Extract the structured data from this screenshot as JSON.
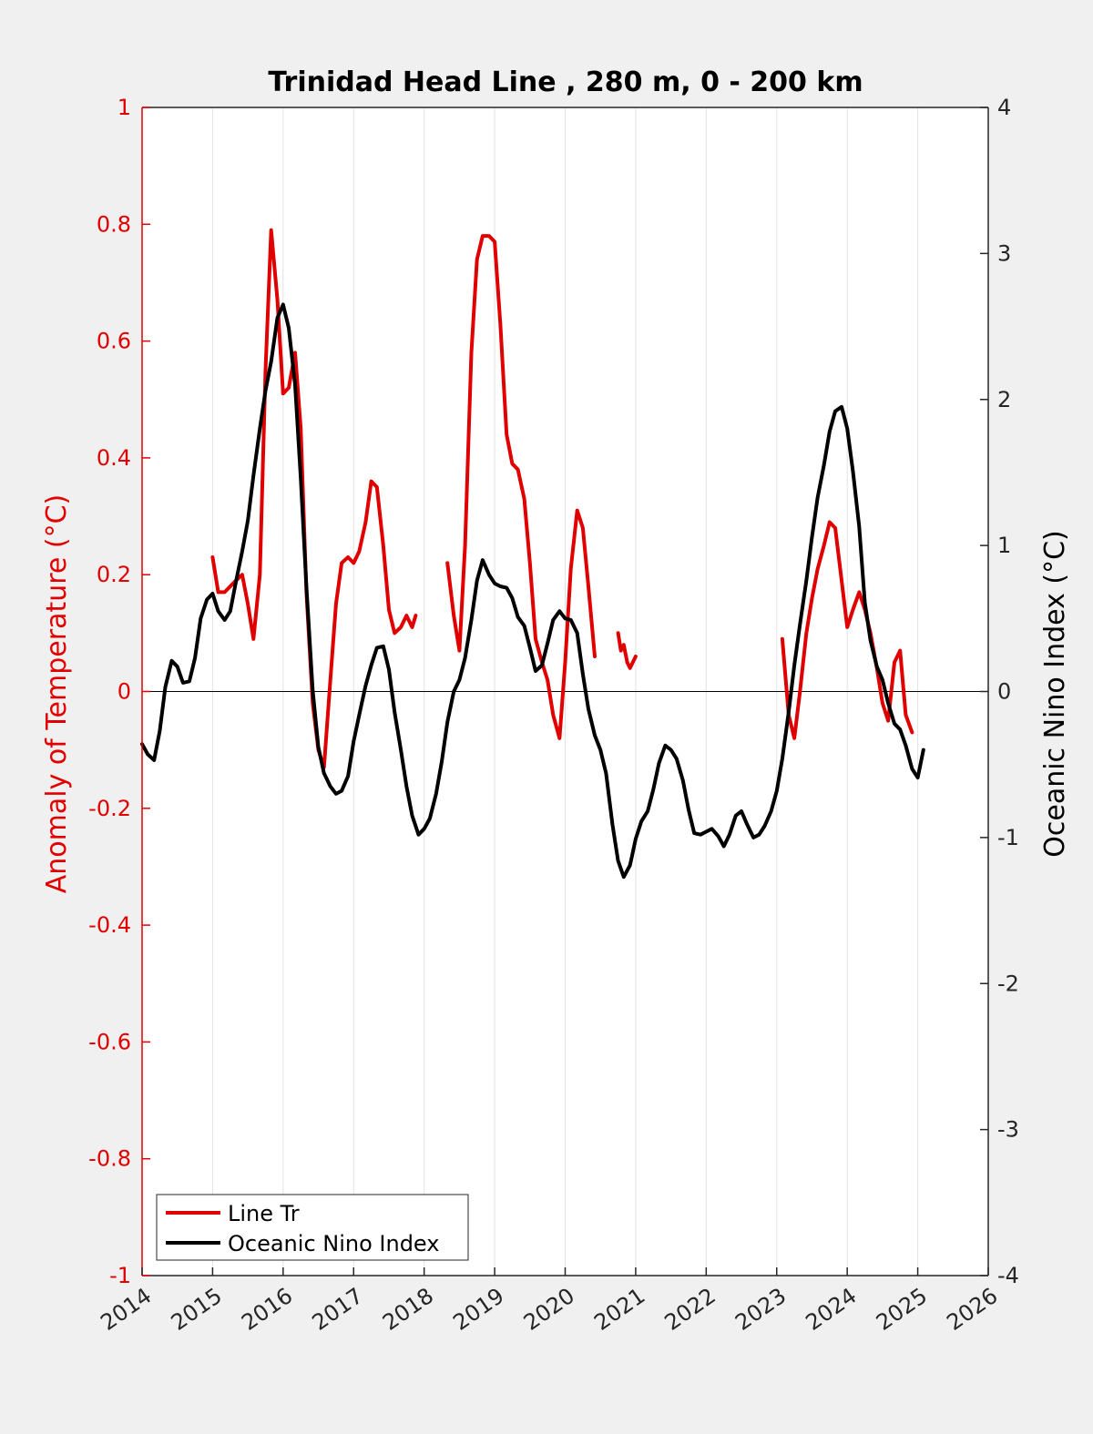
{
  "chart_data": {
    "type": "line",
    "title": "Trinidad Head Line , 280 m, 0 - 200 km",
    "xlabel": "",
    "xlim": [
      2014,
      2026
    ],
    "x_ticks": [
      "2014",
      "2015",
      "2016",
      "2017",
      "2018",
      "2019",
      "2020",
      "2021",
      "2022",
      "2023",
      "2024",
      "2025",
      "2026"
    ],
    "ylabel_left": "Anomaly of Temperature (°C)",
    "ylim_left": [
      -1,
      1
    ],
    "y_ticks_left": [
      "1",
      "0.8",
      "0.6",
      "0.4",
      "0.2",
      "0",
      "-0.2",
      "-0.4",
      "-0.6",
      "-0.8",
      "-1"
    ],
    "ylabel_right": "Oceanic Nino Index (°C)",
    "ylim_right": [
      -4,
      4
    ],
    "y_ticks_right": [
      "4",
      "3",
      "2",
      "1",
      "0",
      "-1",
      "-2",
      "-3",
      "-4"
    ],
    "grid": "x-vertical",
    "legend_position": "bottom-left",
    "series": [
      {
        "name": "Line Tr",
        "color": "#e00000",
        "axis": "left",
        "segments": [
          [
            [
              2015.0,
              0.23
            ],
            [
              2015.08,
              0.17
            ],
            [
              2015.17,
              0.17
            ],
            [
              2015.25,
              0.18
            ],
            [
              2015.33,
              0.19
            ],
            [
              2015.42,
              0.2
            ],
            [
              2015.5,
              0.15
            ],
            [
              2015.58,
              0.09
            ],
            [
              2015.67,
              0.2
            ],
            [
              2015.75,
              0.55
            ],
            [
              2015.83,
              0.79
            ],
            [
              2015.92,
              0.67
            ],
            [
              2016.0,
              0.51
            ],
            [
              2016.08,
              0.52
            ],
            [
              2016.17,
              0.58
            ],
            [
              2016.25,
              0.45
            ],
            [
              2016.33,
              0.17
            ],
            [
              2016.42,
              -0.02
            ],
            [
              2016.5,
              -0.1
            ],
            [
              2016.58,
              -0.13
            ],
            [
              2016.67,
              0.02
            ],
            [
              2016.75,
              0.15
            ],
            [
              2016.83,
              0.22
            ],
            [
              2016.92,
              0.23
            ],
            [
              2017.0,
              0.22
            ],
            [
              2017.08,
              0.24
            ],
            [
              2017.17,
              0.29
            ],
            [
              2017.25,
              0.36
            ],
            [
              2017.33,
              0.35
            ],
            [
              2017.42,
              0.25
            ],
            [
              2017.5,
              0.14
            ],
            [
              2017.58,
              0.1
            ],
            [
              2017.67,
              0.11
            ],
            [
              2017.75,
              0.13
            ],
            [
              2017.83,
              0.11
            ],
            [
              2017.88,
              0.13
            ]
          ],
          [
            [
              2018.33,
              0.22
            ],
            [
              2018.42,
              0.13
            ],
            [
              2018.5,
              0.07
            ],
            [
              2018.58,
              0.25
            ],
            [
              2018.67,
              0.58
            ],
            [
              2018.75,
              0.74
            ],
            [
              2018.83,
              0.78
            ],
            [
              2018.92,
              0.78
            ],
            [
              2019.0,
              0.77
            ],
            [
              2019.08,
              0.63
            ],
            [
              2019.17,
              0.44
            ],
            [
              2019.25,
              0.39
            ],
            [
              2019.33,
              0.38
            ],
            [
              2019.42,
              0.33
            ],
            [
              2019.5,
              0.22
            ],
            [
              2019.58,
              0.09
            ],
            [
              2019.67,
              0.05
            ],
            [
              2019.75,
              0.02
            ],
            [
              2019.83,
              -0.04
            ],
            [
              2019.92,
              -0.08
            ],
            [
              2020.0,
              0.05
            ],
            [
              2020.08,
              0.21
            ],
            [
              2020.17,
              0.31
            ],
            [
              2020.25,
              0.28
            ],
            [
              2020.33,
              0.18
            ],
            [
              2020.42,
              0.06
            ]
          ],
          [
            [
              2020.75,
              0.1
            ],
            [
              2020.79,
              0.07
            ],
            [
              2020.83,
              0.08
            ],
            [
              2020.88,
              0.05
            ],
            [
              2020.92,
              0.04
            ],
            [
              2021.0,
              0.06
            ]
          ],
          [
            [
              2023.08,
              0.09
            ],
            [
              2023.17,
              -0.04
            ],
            [
              2023.25,
              -0.08
            ],
            [
              2023.33,
              0.0
            ],
            [
              2023.42,
              0.1
            ],
            [
              2023.5,
              0.16
            ],
            [
              2023.58,
              0.21
            ],
            [
              2023.67,
              0.25
            ],
            [
              2023.75,
              0.29
            ],
            [
              2023.83,
              0.28
            ],
            [
              2023.92,
              0.19
            ],
            [
              2024.0,
              0.11
            ],
            [
              2024.08,
              0.14
            ],
            [
              2024.17,
              0.17
            ],
            [
              2024.25,
              0.14
            ],
            [
              2024.33,
              0.1
            ],
            [
              2024.42,
              0.04
            ],
            [
              2024.5,
              -0.02
            ],
            [
              2024.58,
              -0.05
            ],
            [
              2024.67,
              0.05
            ],
            [
              2024.75,
              0.07
            ],
            [
              2024.83,
              -0.04
            ],
            [
              2024.92,
              -0.07
            ]
          ]
        ]
      },
      {
        "name": "Oceanic Nino Index",
        "color": "#000000",
        "axis": "right",
        "segments": [
          [
            [
              2014.0,
              -0.36
            ],
            [
              2014.08,
              -0.43
            ],
            [
              2014.17,
              -0.47
            ],
            [
              2014.25,
              -0.27
            ],
            [
              2014.33,
              0.03
            ],
            [
              2014.42,
              0.21
            ],
            [
              2014.5,
              0.17
            ],
            [
              2014.58,
              0.06
            ],
            [
              2014.67,
              0.07
            ],
            [
              2014.75,
              0.23
            ],
            [
              2014.83,
              0.5
            ],
            [
              2014.92,
              0.63
            ],
            [
              2015.0,
              0.67
            ],
            [
              2015.08,
              0.55
            ],
            [
              2015.17,
              0.49
            ],
            [
              2015.25,
              0.55
            ],
            [
              2015.33,
              0.75
            ],
            [
              2015.42,
              0.96
            ],
            [
              2015.5,
              1.17
            ],
            [
              2015.58,
              1.48
            ],
            [
              2015.67,
              1.8
            ],
            [
              2015.75,
              2.06
            ],
            [
              2015.83,
              2.26
            ],
            [
              2015.92,
              2.56
            ],
            [
              2016.0,
              2.65
            ],
            [
              2016.08,
              2.49
            ],
            [
              2016.17,
              2.1
            ],
            [
              2016.25,
              1.46
            ],
            [
              2016.33,
              0.72
            ],
            [
              2016.42,
              0.01
            ],
            [
              2016.5,
              -0.38
            ],
            [
              2016.58,
              -0.56
            ],
            [
              2016.67,
              -0.65
            ],
            [
              2016.75,
              -0.7
            ],
            [
              2016.83,
              -0.68
            ],
            [
              2016.92,
              -0.58
            ],
            [
              2017.0,
              -0.34
            ],
            [
              2017.08,
              -0.16
            ],
            [
              2017.17,
              0.04
            ],
            [
              2017.25,
              0.18
            ],
            [
              2017.33,
              0.3
            ],
            [
              2017.42,
              0.31
            ],
            [
              2017.5,
              0.15
            ],
            [
              2017.58,
              -0.14
            ],
            [
              2017.67,
              -0.4
            ],
            [
              2017.75,
              -0.65
            ],
            [
              2017.83,
              -0.85
            ],
            [
              2017.92,
              -0.98
            ],
            [
              2018.0,
              -0.94
            ],
            [
              2018.08,
              -0.87
            ],
            [
              2018.17,
              -0.7
            ],
            [
              2018.25,
              -0.48
            ],
            [
              2018.33,
              -0.21
            ],
            [
              2018.42,
              0.0
            ],
            [
              2018.5,
              0.08
            ],
            [
              2018.58,
              0.23
            ],
            [
              2018.67,
              0.49
            ],
            [
              2018.75,
              0.76
            ],
            [
              2018.83,
              0.9
            ],
            [
              2018.92,
              0.8
            ],
            [
              2019.0,
              0.74
            ],
            [
              2019.08,
              0.72
            ],
            [
              2019.17,
              0.71
            ],
            [
              2019.25,
              0.64
            ],
            [
              2019.33,
              0.51
            ],
            [
              2019.42,
              0.45
            ],
            [
              2019.5,
              0.3
            ],
            [
              2019.58,
              0.14
            ],
            [
              2019.67,
              0.18
            ],
            [
              2019.75,
              0.33
            ],
            [
              2019.83,
              0.49
            ],
            [
              2019.92,
              0.55
            ],
            [
              2020.0,
              0.5
            ],
            [
              2020.08,
              0.49
            ],
            [
              2020.17,
              0.4
            ],
            [
              2020.25,
              0.12
            ],
            [
              2020.33,
              -0.12
            ],
            [
              2020.42,
              -0.3
            ],
            [
              2020.5,
              -0.4
            ],
            [
              2020.58,
              -0.56
            ],
            [
              2020.67,
              -0.91
            ],
            [
              2020.75,
              -1.16
            ],
            [
              2020.83,
              -1.27
            ],
            [
              2020.92,
              -1.19
            ],
            [
              2021.0,
              -1.01
            ],
            [
              2021.08,
              -0.89
            ],
            [
              2021.17,
              -0.82
            ],
            [
              2021.25,
              -0.67
            ],
            [
              2021.33,
              -0.49
            ],
            [
              2021.42,
              -0.37
            ],
            [
              2021.5,
              -0.4
            ],
            [
              2021.58,
              -0.46
            ],
            [
              2021.67,
              -0.61
            ],
            [
              2021.75,
              -0.81
            ],
            [
              2021.83,
              -0.97
            ],
            [
              2021.92,
              -0.98
            ],
            [
              2022.0,
              -0.96
            ],
            [
              2022.08,
              -0.94
            ],
            [
              2022.17,
              -0.99
            ],
            [
              2022.25,
              -1.06
            ],
            [
              2022.33,
              -0.98
            ],
            [
              2022.42,
              -0.85
            ],
            [
              2022.5,
              -0.82
            ],
            [
              2022.58,
              -0.91
            ],
            [
              2022.67,
              -1.0
            ],
            [
              2022.75,
              -0.98
            ],
            [
              2022.83,
              -0.92
            ],
            [
              2022.92,
              -0.82
            ],
            [
              2023.0,
              -0.68
            ],
            [
              2023.08,
              -0.46
            ],
            [
              2023.17,
              -0.14
            ],
            [
              2023.25,
              0.18
            ],
            [
              2023.33,
              0.46
            ],
            [
              2023.42,
              0.76
            ],
            [
              2023.5,
              1.06
            ],
            [
              2023.58,
              1.33
            ],
            [
              2023.67,
              1.55
            ],
            [
              2023.75,
              1.78
            ],
            [
              2023.83,
              1.92
            ],
            [
              2023.92,
              1.95
            ],
            [
              2024.0,
              1.8
            ],
            [
              2024.08,
              1.51
            ],
            [
              2024.17,
              1.13
            ],
            [
              2024.25,
              0.61
            ],
            [
              2024.33,
              0.35
            ],
            [
              2024.42,
              0.17
            ],
            [
              2024.5,
              0.08
            ],
            [
              2024.58,
              -0.08
            ],
            [
              2024.67,
              -0.22
            ],
            [
              2024.75,
              -0.26
            ],
            [
              2024.83,
              -0.37
            ],
            [
              2024.92,
              -0.53
            ],
            [
              2025.0,
              -0.59
            ],
            [
              2025.08,
              -0.4
            ]
          ]
        ]
      }
    ],
    "reference_line": {
      "y_left": 0,
      "color": "#000000"
    }
  },
  "legend": {
    "items": [
      {
        "label": "Line Tr",
        "color": "#e00000"
      },
      {
        "label": "Oceanic Nino Index",
        "color": "#000000"
      }
    ]
  },
  "colors": {
    "background": "#f0f0f0",
    "plot": "#ffffff",
    "left_axis": "#e00000",
    "right_axis": "#262626"
  }
}
